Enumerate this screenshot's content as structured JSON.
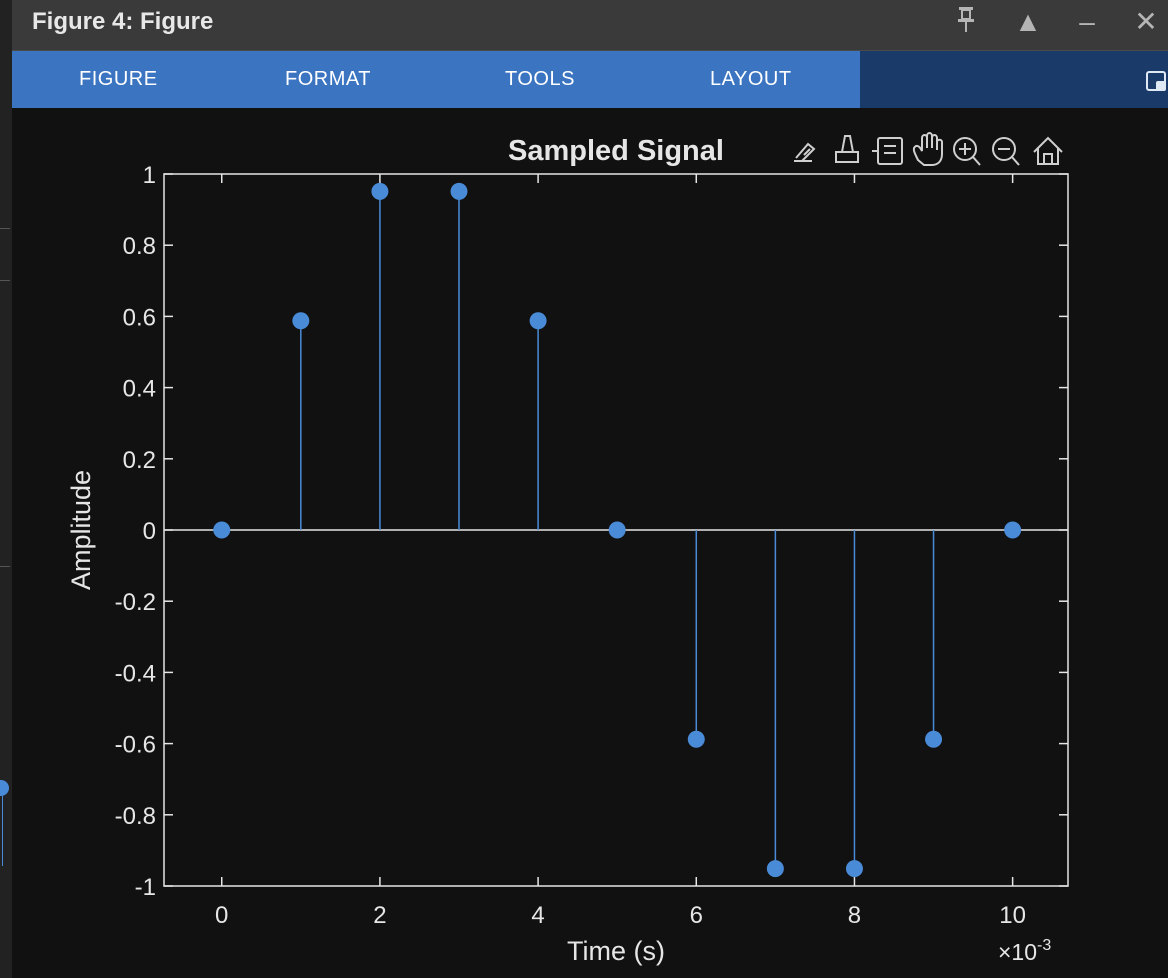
{
  "window": {
    "title": "Figure 4: Figure",
    "controls": {
      "pin": "pin-icon",
      "maximize": "▲",
      "minimize": "–",
      "close": "✕"
    }
  },
  "menu": {
    "tabs": [
      "FIGURE",
      "FORMAT",
      "TOOLS",
      "LAYOUT"
    ]
  },
  "axes_toolbar": {
    "icons": [
      "brush-data-icon",
      "data-tips-icon",
      "restore-view-icon",
      "pan-hand-icon",
      "zoom-in-icon",
      "zoom-out-icon",
      "home-icon"
    ]
  },
  "colors": {
    "stem": "#4a8bd8",
    "axis": "#e6e6e6",
    "background": "#111111",
    "menubar": "#3b74c0"
  },
  "chart_data": {
    "type": "stem",
    "title": "Sampled Signal",
    "xlabel": "Time (s)",
    "ylabel": "Amplitude",
    "x_exponent_label": "×10",
    "x_exponent_power": "-3",
    "x": [
      0,
      0.001,
      0.002,
      0.003,
      0.004,
      0.005,
      0.006,
      0.007,
      0.008,
      0.009,
      0.01
    ],
    "y": [
      0,
      0.5878,
      0.9511,
      0.9511,
      0.5878,
      0,
      -0.5878,
      -0.9511,
      -0.9511,
      -0.5878,
      0
    ],
    "xlim": [
      -0.00073,
      0.0107
    ],
    "ylim": [
      -1,
      1
    ],
    "xticks": [
      0,
      0.002,
      0.004,
      0.006,
      0.008,
      0.01
    ],
    "xtick_labels": [
      "0",
      "2",
      "4",
      "6",
      "8",
      "10"
    ],
    "yticks": [
      1,
      0.8,
      0.6,
      0.4,
      0.2,
      0,
      -0.2,
      -0.4,
      -0.6,
      -0.8,
      -1
    ],
    "ytick_labels": [
      "1",
      "0.8",
      "0.6",
      "0.4",
      "0.2",
      "0",
      "-0.2",
      "-0.4",
      "-0.6",
      "-0.8",
      "-1"
    ],
    "baseline": 0,
    "grid": false
  }
}
